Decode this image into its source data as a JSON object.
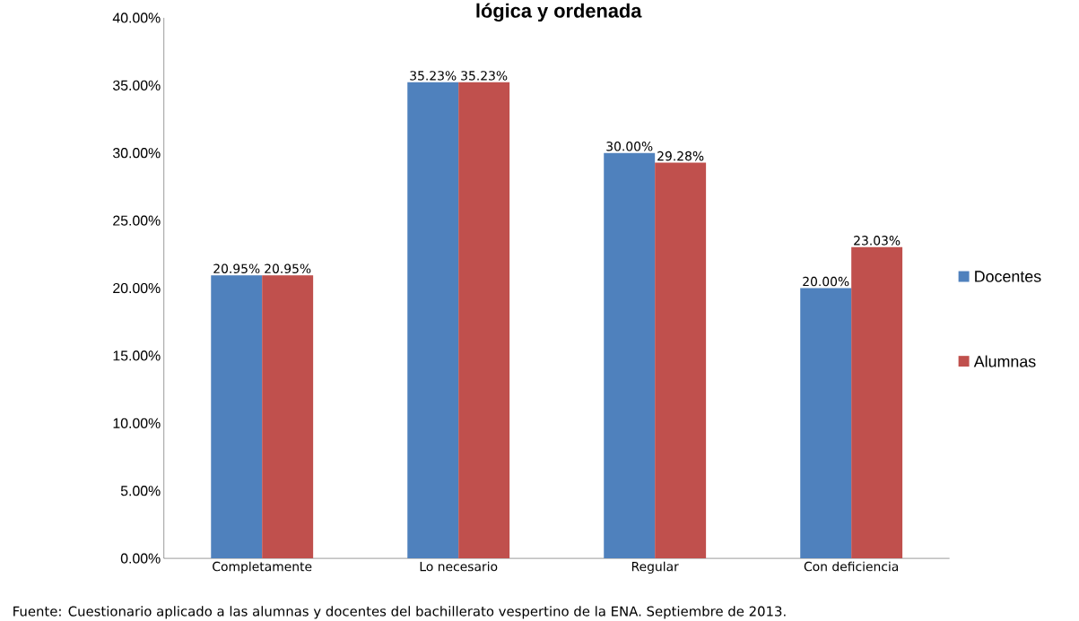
{
  "chart_data": {
    "type": "bar",
    "title": "lógica y ordenada",
    "categories": [
      "Completamente",
      "Lo necesario",
      "Regular",
      "Con deficiencia"
    ],
    "series": [
      {
        "name": "Docentes",
        "color": "#4f81bd",
        "values": [
          20.95,
          35.23,
          30.0,
          20.0
        ],
        "value_labels": [
          "20.95%",
          "35.23%",
          "30.00%",
          "20.00%"
        ]
      },
      {
        "name": "Alumnas",
        "color": "#c0504d",
        "values": [
          20.95,
          35.23,
          29.28,
          23.03
        ],
        "value_labels": [
          "20.95%",
          "35.23%",
          "29.28%",
          "23.03%"
        ]
      }
    ],
    "ylim": [
      0,
      40
    ],
    "yticks": [
      {
        "value": 0,
        "label": "0.00%"
      },
      {
        "value": 5,
        "label": "5.00%"
      },
      {
        "value": 10,
        "label": "10.00%"
      },
      {
        "value": 15,
        "label": "15.00%"
      },
      {
        "value": 20,
        "label": "20.00%"
      },
      {
        "value": 25,
        "label": "25.00%"
      },
      {
        "value": 30,
        "label": "30.00%"
      },
      {
        "value": 35,
        "label": "35.00%"
      },
      {
        "value": 40,
        "label": "40.00%"
      }
    ],
    "legend": "right",
    "grid": false,
    "annotations": [
      "Fuente: Cuestionario aplicado a las alumnas y docentes del bachillerato vespertino de la ENA. Septiembre de 2013."
    ]
  }
}
